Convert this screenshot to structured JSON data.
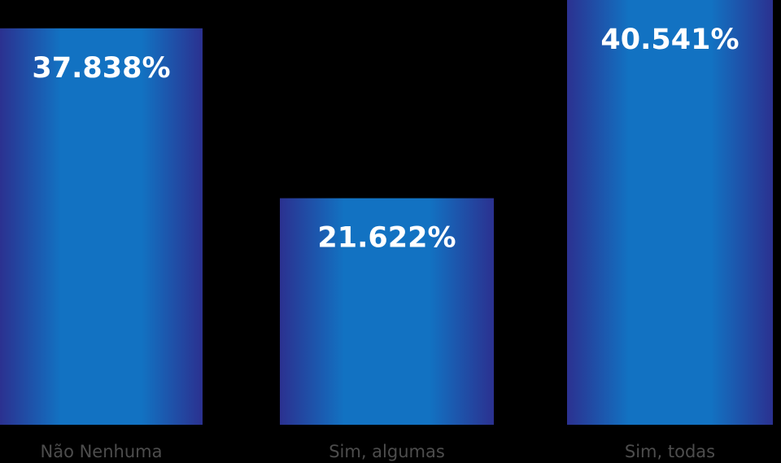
{
  "chart_data": {
    "type": "bar",
    "categories": [
      "Não Nenhuma",
      "Sim, algumas",
      "Sim, todas"
    ],
    "values": [
      37.838,
      21.622,
      40.541
    ],
    "value_labels": [
      "37.838%",
      "21.622%",
      "40.541%"
    ],
    "color": "#1272c2",
    "edge_color": "#2b3190"
  }
}
